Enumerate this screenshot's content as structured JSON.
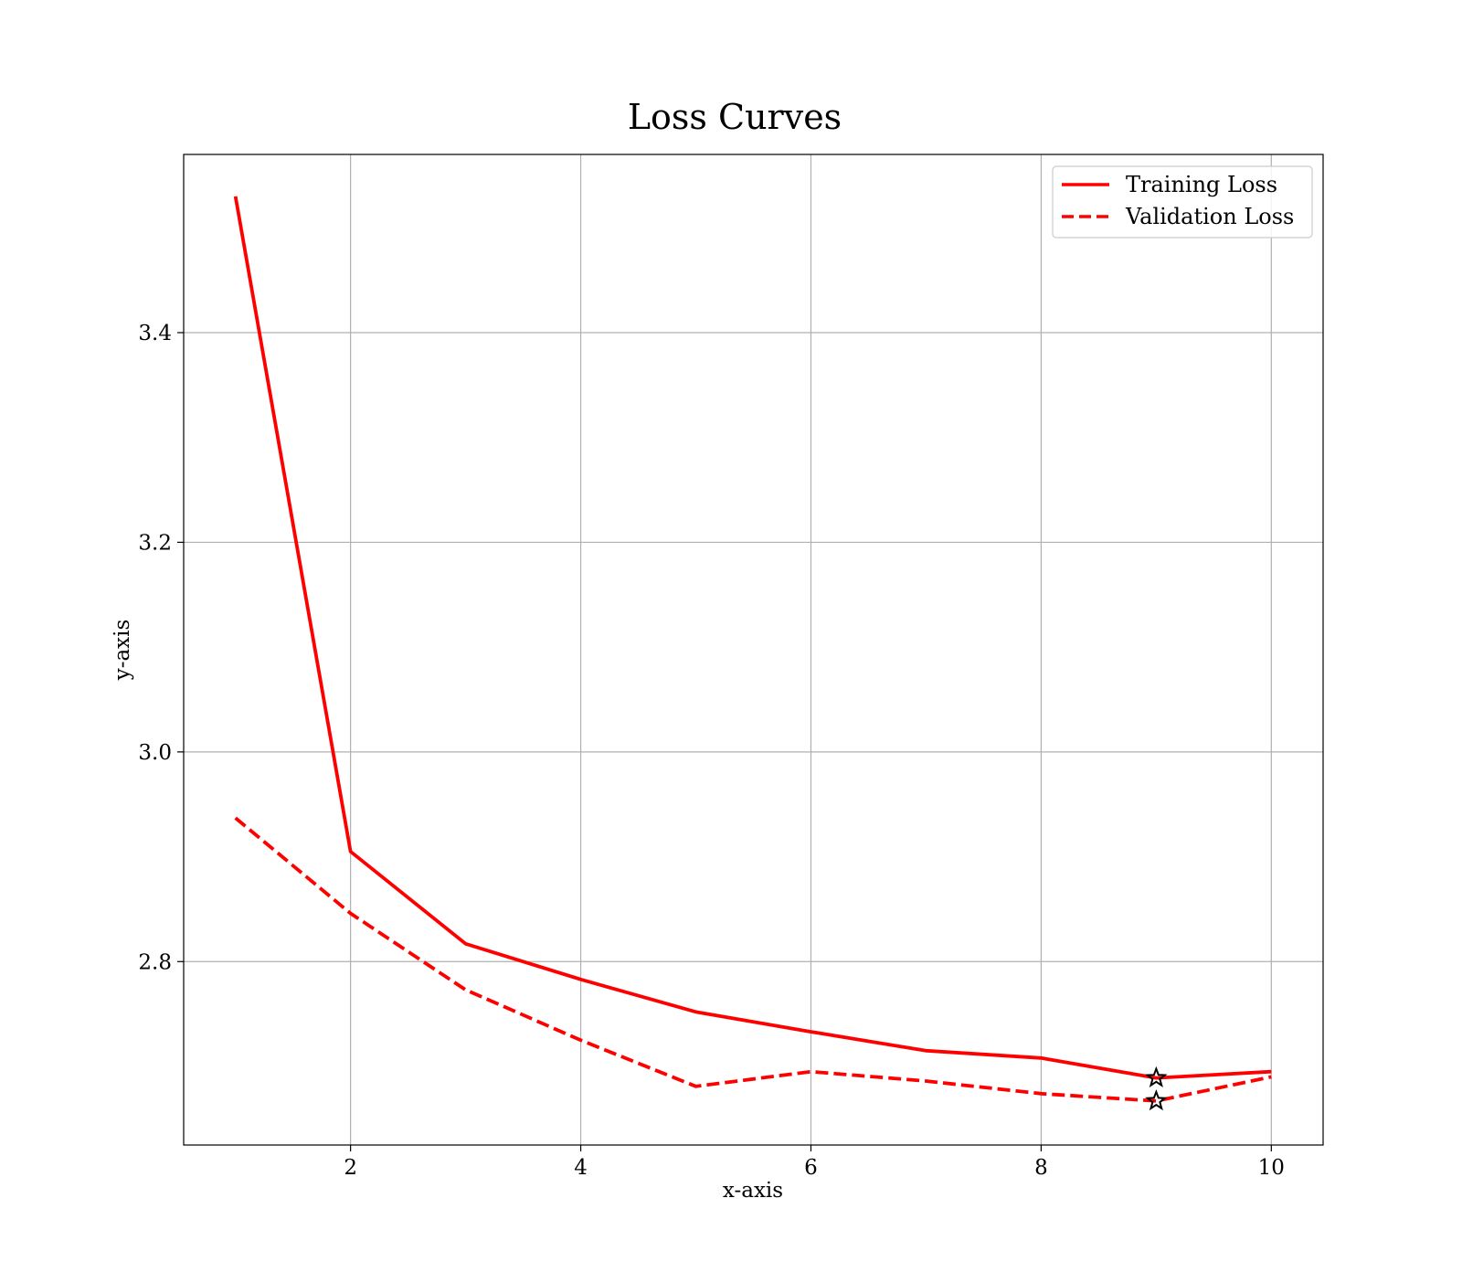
{
  "chart_data": {
    "type": "line",
    "title": "Loss Curves",
    "xlabel": "x-axis",
    "ylabel": "y-axis",
    "xlim": [
      0.55,
      10.45
    ],
    "ylim": [
      2.625,
      3.57
    ],
    "xticks": [
      2,
      4,
      6,
      8,
      10
    ],
    "yticks": [
      2.8,
      3.0,
      3.2,
      3.4
    ],
    "xtick_labels": [
      "2",
      "4",
      "6",
      "8",
      "10"
    ],
    "ytick_labels": [
      "2.8",
      "3.0",
      "3.2",
      "3.4"
    ],
    "grid": true,
    "legend_position": "upper-right",
    "x": [
      1,
      2,
      3,
      4,
      5,
      6,
      7,
      8,
      9,
      10
    ],
    "series": [
      {
        "name": "Training Loss",
        "color": "#ff0000",
        "style": "solid",
        "values": [
          3.53,
          2.905,
          2.817,
          2.783,
          2.752,
          2.733,
          2.715,
          2.708,
          2.689,
          2.695
        ]
      },
      {
        "name": "Validation Loss",
        "color": "#ff0000",
        "style": "dashed",
        "values": [
          2.937,
          2.846,
          2.773,
          2.725,
          2.681,
          2.695,
          2.686,
          2.674,
          2.667,
          2.69
        ]
      }
    ],
    "markers": [
      {
        "marker": "star",
        "color": "#000000",
        "x": 9,
        "y": 2.689
      },
      {
        "marker": "star",
        "color": "#000000",
        "x": 9,
        "y": 2.667
      }
    ]
  }
}
